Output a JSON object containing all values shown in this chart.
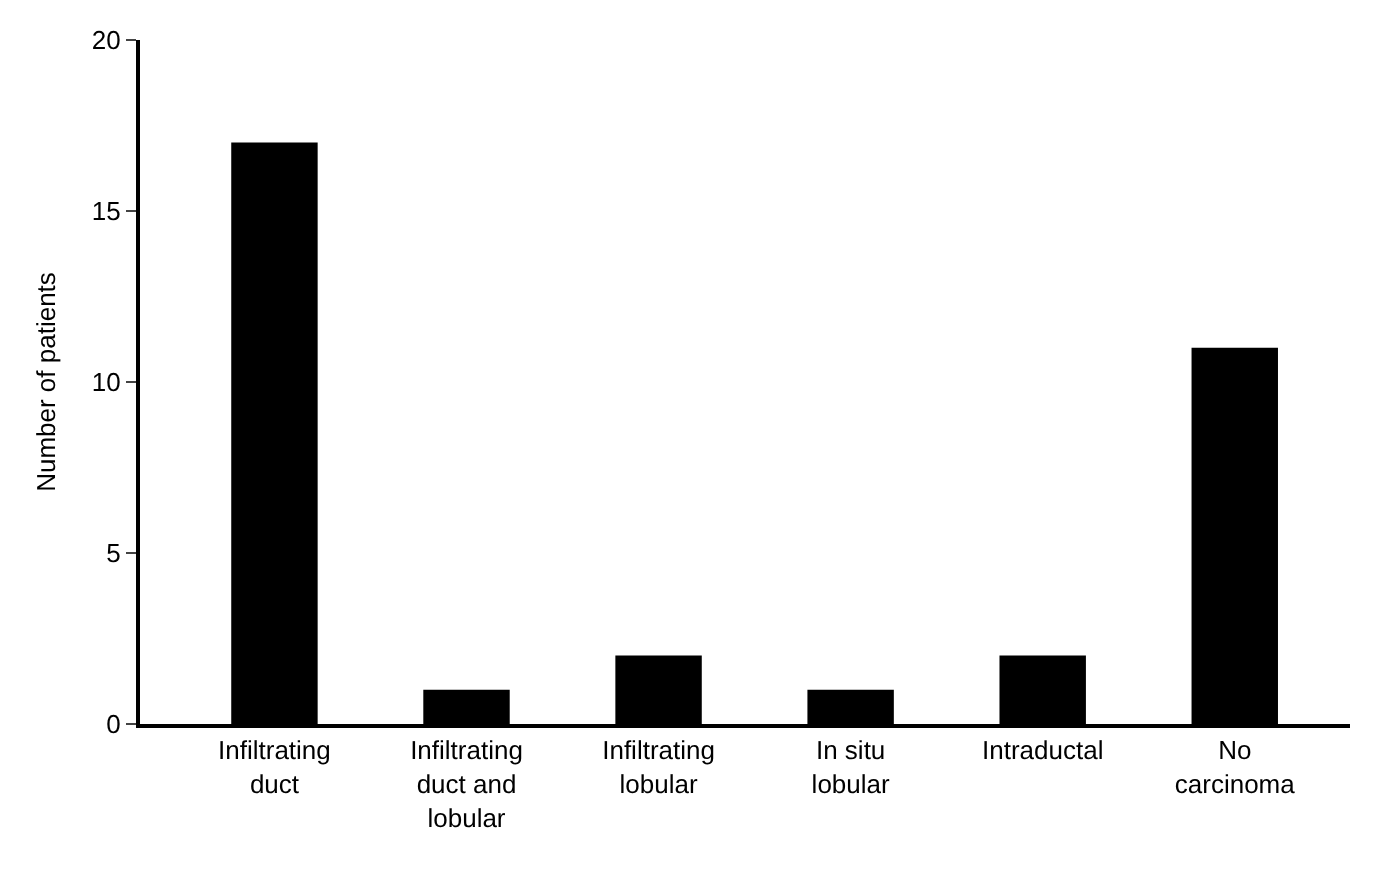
{
  "chart_data": {
    "type": "bar",
    "ylabel": "Number of patients",
    "categories": [
      "Infiltrating duct",
      "Infiltrating duct and lobular",
      "Infiltrating lobular",
      "In situ lobular",
      "Intraductal",
      "No carcinoma"
    ],
    "values": [
      17,
      1,
      2,
      1,
      2,
      11
    ],
    "color": "#000000",
    "ylim": [
      0,
      20
    ],
    "yticks": [
      0,
      5,
      10,
      15,
      20
    ]
  }
}
